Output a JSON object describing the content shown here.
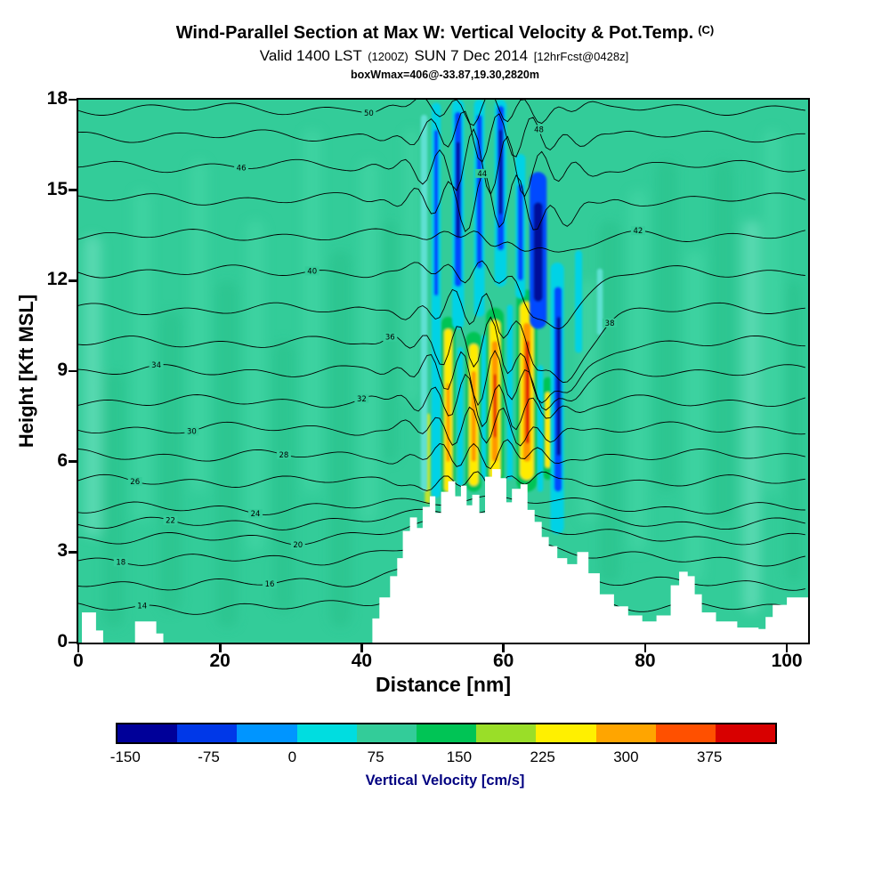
{
  "header": {
    "title": "Wind-Parallel Section at Max W: Vertical Velocity & Pot.Temp.",
    "title_suffix": "(C)",
    "valid_prefix": "Valid 1400 LST",
    "valid_zulu": "(1200Z)",
    "valid_date": "SUN 7 Dec 2014",
    "fcst_tag": "[12hrFcst@0428z]",
    "box_info": "boxWmax=406@-33.87,19.30,2820m"
  },
  "chart_data": {
    "type": "heatmap",
    "title": "Wind-Parallel Section at Max W: Vertical Velocity & Pot.Temp. (C)",
    "subtitle": "Valid 1400 LST (1200Z) SUN 7 Dec 2014 [12hrFcst@0428z]",
    "annotation": "boxWmax=406@-33.87,19.30,2820m",
    "xlabel": "Distance [nm]",
    "ylabel": "Height [Kft MSL]",
    "xlim": [
      0,
      103
    ],
    "ylim": [
      0,
      18
    ],
    "xticks": [
      0,
      20,
      40,
      60,
      80,
      100
    ],
    "yticks": [
      0,
      3,
      6,
      9,
      12,
      15,
      18
    ],
    "filled_field": "vertical velocity (cm/s), filled contours",
    "line_field": "potential temperature (C), black line contours",
    "background_color": "#33CC99",
    "colorbar": {
      "label": "Vertical Velocity [cm/s]",
      "tick_values": [
        -150,
        -75,
        0,
        75,
        150,
        225,
        300,
        375
      ],
      "vmin": -157,
      "vmax": 434,
      "colors": [
        "#000099",
        "#0038E8",
        "#0095FF",
        "#00DDE0",
        "#33CC99",
        "#00C455",
        "#9ADE28",
        "#FFF000",
        "#FFA500",
        "#FF5000",
        "#D80000"
      ],
      "label_color": "#000080"
    },
    "palette": {
      "mint": "#7CE5C8",
      "light": "#49D9A9",
      "dark": "#26BF88",
      "cyan": "#00D2E6",
      "cyan_faint": "#5FE0D2",
      "blue": "#0048FF",
      "navy": "#000A99",
      "green_bright": "#00C455",
      "yellow_green": "#BFE32E",
      "yellow": "#FFEB00",
      "orange": "#FF9500",
      "red": "#E01000"
    },
    "terrain_profile_kft": [
      [
        0,
        0
      ],
      [
        0.5,
        1.0
      ],
      [
        2.5,
        0.4
      ],
      [
        3.5,
        0
      ],
      [
        8,
        0.7
      ],
      [
        11,
        0.3
      ],
      [
        12,
        0
      ],
      [
        40.5,
        0
      ],
      [
        41.5,
        0.8
      ],
      [
        42.5,
        1.5
      ],
      [
        44,
        2.2
      ],
      [
        45,
        2.8
      ],
      [
        45.8,
        3.7
      ],
      [
        46.8,
        4.15
      ],
      [
        47.8,
        3.8
      ],
      [
        48.6,
        4.5
      ],
      [
        49.6,
        4.85
      ],
      [
        50.4,
        4.3
      ],
      [
        51.2,
        5.0
      ],
      [
        52.2,
        5.35
      ],
      [
        53.2,
        4.85
      ],
      [
        54,
        5.2
      ],
      [
        54.8,
        4.55
      ],
      [
        55.6,
        4.9
      ],
      [
        56.6,
        4.3
      ],
      [
        57.4,
        5.5
      ],
      [
        58.4,
        5.75
      ],
      [
        59.6,
        5.45
      ],
      [
        60.4,
        4.65
      ],
      [
        61.2,
        5.1
      ],
      [
        62.4,
        5.25
      ],
      [
        63.4,
        4.4
      ],
      [
        64.4,
        4.0
      ],
      [
        65.4,
        3.5
      ],
      [
        66.4,
        3.2
      ],
      [
        67.6,
        2.8
      ],
      [
        69,
        2.6
      ],
      [
        70.4,
        3.0
      ],
      [
        72,
        2.3
      ],
      [
        73.6,
        1.6
      ],
      [
        75.6,
        1.2
      ],
      [
        77.6,
        0.9
      ],
      [
        79.6,
        0.7
      ],
      [
        81.6,
        0.9
      ],
      [
        83.6,
        1.9
      ],
      [
        84.8,
        2.35
      ],
      [
        86,
        2.2
      ],
      [
        87,
        1.6
      ],
      [
        88,
        1.0
      ],
      [
        90,
        0.7
      ],
      [
        93,
        0.5
      ],
      [
        96,
        0.45
      ],
      [
        97,
        0.85
      ],
      [
        98,
        1.25
      ],
      [
        100,
        1.5
      ],
      [
        103,
        1.6
      ]
    ],
    "mottle_patches": [
      [
        2,
        2.5,
        3.5,
        13.5,
        "mint"
      ],
      [
        5,
        3,
        0.5,
        9,
        "dark"
      ],
      [
        9,
        2.5,
        4,
        15,
        "light"
      ],
      [
        13,
        3,
        1,
        11,
        "dark"
      ],
      [
        17,
        2.5,
        5,
        16,
        "light"
      ],
      [
        21,
        3,
        0.5,
        12,
        "dark"
      ],
      [
        25,
        2.5,
        3,
        14,
        "light"
      ],
      [
        29,
        3,
        1,
        10,
        "dark"
      ],
      [
        33,
        2.5,
        5,
        17,
        "light"
      ],
      [
        37,
        3,
        0.5,
        13,
        "dark"
      ],
      [
        41,
        2.5,
        4,
        16,
        "light"
      ],
      [
        44,
        2,
        6,
        14,
        "dark"
      ],
      [
        47,
        1.8,
        8,
        17,
        "light"
      ],
      [
        72,
        2.5,
        4,
        12,
        "light"
      ],
      [
        75,
        3,
        2,
        14,
        "dark"
      ],
      [
        79,
        2.5,
        3,
        15,
        "light"
      ],
      [
        83,
        3,
        5,
        16,
        "dark"
      ],
      [
        87,
        2.5,
        2,
        13,
        "light"
      ],
      [
        91,
        3,
        4,
        16,
        "dark"
      ],
      [
        95,
        2.5,
        1,
        14,
        "mint"
      ],
      [
        98,
        2.5,
        5,
        17,
        "light"
      ],
      [
        101,
        2,
        2,
        12,
        "dark"
      ]
    ],
    "warm_streaks": [
      [
        52.2,
        2.0,
        4.8,
        10.8,
        "green_bright"
      ],
      [
        55.8,
        2.2,
        5.0,
        10.3,
        "green_bright"
      ],
      [
        58.8,
        2.5,
        5.2,
        11.1,
        "green_bright"
      ],
      [
        63.3,
        2.9,
        5.0,
        11.7,
        "green_bright"
      ],
      [
        66.3,
        1.5,
        5.4,
        8.8,
        "green_bright"
      ],
      [
        49.3,
        0.8,
        4.6,
        7.6,
        "yellow_green"
      ],
      [
        52.2,
        1.1,
        5.0,
        10.4,
        "yellow"
      ],
      [
        52.2,
        0.45,
        6.0,
        8.6,
        "orange"
      ],
      [
        55.8,
        1.3,
        5.2,
        9.9,
        "yellow"
      ],
      [
        55.8,
        0.6,
        6.0,
        9.0,
        "orange"
      ],
      [
        58.8,
        1.5,
        5.4,
        10.7,
        "yellow"
      ],
      [
        58.8,
        0.85,
        6.0,
        10.0,
        "orange"
      ],
      [
        58.8,
        0.4,
        6.8,
        8.9,
        "red"
      ],
      [
        63.3,
        1.9,
        5.4,
        11.3,
        "yellow"
      ],
      [
        63.3,
        1.05,
        6.0,
        10.6,
        "orange"
      ],
      [
        63.4,
        0.55,
        6.6,
        10.0,
        "red"
      ],
      [
        66.3,
        0.8,
        5.8,
        8.3,
        "yellow"
      ]
    ],
    "cold_streaks": [
      [
        48.8,
        0.9,
        5.0,
        17.5,
        "cyan_faint"
      ],
      [
        50.5,
        1.3,
        4.8,
        17.9,
        "cyan"
      ],
      [
        50.5,
        0.6,
        11.5,
        17.0,
        "blue"
      ],
      [
        53.6,
        1.7,
        10.4,
        18.0,
        "cyan"
      ],
      [
        53.6,
        1.0,
        11.8,
        17.6,
        "blue"
      ],
      [
        53.6,
        0.5,
        13.4,
        16.6,
        "navy"
      ],
      [
        53.9,
        0.8,
        5.2,
        9.8,
        "cyan"
      ],
      [
        56.6,
        1.5,
        10.8,
        18.0,
        "cyan"
      ],
      [
        56.6,
        0.8,
        12.4,
        17.5,
        "blue"
      ],
      [
        57.2,
        0.6,
        5.4,
        10.2,
        "cyan"
      ],
      [
        59.6,
        1.7,
        11.8,
        18.0,
        "cyan"
      ],
      [
        59.6,
        1.0,
        13.0,
        17.8,
        "blue"
      ],
      [
        59.6,
        0.5,
        14.2,
        17.0,
        "navy"
      ],
      [
        60.9,
        0.8,
        5.4,
        11.2,
        "cyan"
      ],
      [
        62.4,
        1.4,
        11.4,
        16.2,
        "cyan"
      ],
      [
        62.4,
        0.8,
        12.0,
        15.2,
        "blue"
      ],
      [
        64.9,
        2.4,
        10.4,
        15.6,
        "blue"
      ],
      [
        64.9,
        1.3,
        11.3,
        14.6,
        "navy"
      ],
      [
        65.2,
        0.8,
        5.0,
        9.2,
        "cyan"
      ],
      [
        67.6,
        1.9,
        3.6,
        12.6,
        "cyan"
      ],
      [
        67.7,
        1.1,
        5.0,
        11.8,
        "blue"
      ],
      [
        67.8,
        0.55,
        6.2,
        10.8,
        "navy"
      ],
      [
        70.6,
        1.0,
        9.6,
        13.0,
        "cyan"
      ],
      [
        73.6,
        0.8,
        10.2,
        12.4,
        "cyan_faint"
      ]
    ],
    "isentropes": [
      {
        "h": 1.15,
        "v": "14",
        "lx": 9
      },
      {
        "h": 1.95,
        "v": "16",
        "lx": 27
      },
      {
        "h": 2.75,
        "v": "18",
        "lx": 6
      },
      {
        "h": 3.45,
        "v": "20",
        "lx": 31
      },
      {
        "h": 3.95,
        "v": "22",
        "lx": 13
      },
      {
        "h": 4.45,
        "v": "24",
        "lx": 25
      },
      {
        "h": 5.35,
        "v": "26",
        "lx": 8
      },
      {
        "h": 6.2,
        "v": "28",
        "lx": 29
      },
      {
        "h": 7.1,
        "v": "30",
        "lx": 16
      },
      {
        "h": 8.0,
        "v": "32",
        "lx": 40
      },
      {
        "h": 9.0,
        "v": "34",
        "lx": 11
      },
      {
        "h": 9.95,
        "v": "36",
        "lx": 44
      },
      {
        "h": 11.05,
        "v": "38",
        "lx": 75
      },
      {
        "h": 12.3,
        "v": "40",
        "lx": 33
      },
      {
        "h": 13.5,
        "v": "42",
        "lx": 79
      },
      {
        "h": 14.7,
        "v": "44",
        "lx": 57
      },
      {
        "h": 15.8,
        "v": "46",
        "lx": 23
      },
      {
        "h": 16.8,
        "v": "48",
        "lx": 65
      },
      {
        "h": 17.7,
        "v": "50",
        "lx": 41
      }
    ]
  }
}
